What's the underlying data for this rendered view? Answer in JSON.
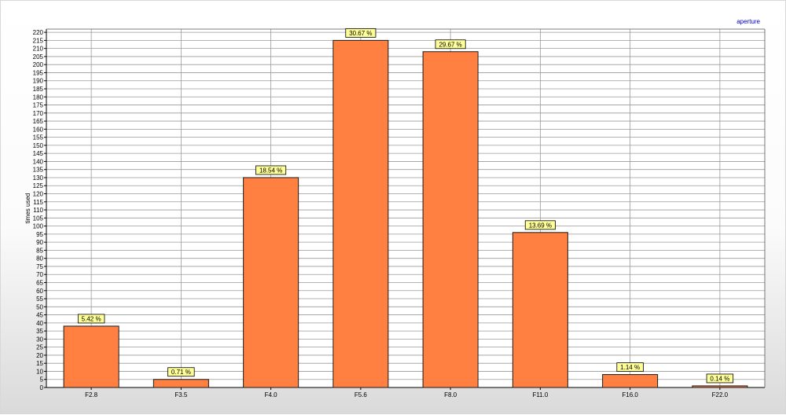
{
  "chart_data": {
    "type": "bar",
    "legend": "aperture",
    "legend_position": "top-right",
    "ylabel": "times used",
    "xlabel": "",
    "ylim": [
      0,
      222
    ],
    "ytick_step": 5,
    "grid": true,
    "categories": [
      "F2.8",
      "F3.5",
      "F4.0",
      "F5.6",
      "F8.0",
      "F11.0",
      "F16.0",
      "F22.0"
    ],
    "series": [
      {
        "name": "aperture",
        "values": [
          38,
          5,
          130,
          215,
          208,
          96,
          8,
          1
        ],
        "labels": [
          "5.42 %",
          "0.71 %",
          "18.54 %",
          "30.67 %",
          "29.67 %",
          "13.69 %",
          "1.14 %",
          "0.14 %"
        ]
      }
    ],
    "colors": {
      "bar_fill": "#ff8040",
      "bar_stroke": "#1a1a1a",
      "label_fill": "#ffff99",
      "legend_text": "#0000cc",
      "grid": "#9a9a9a"
    }
  }
}
